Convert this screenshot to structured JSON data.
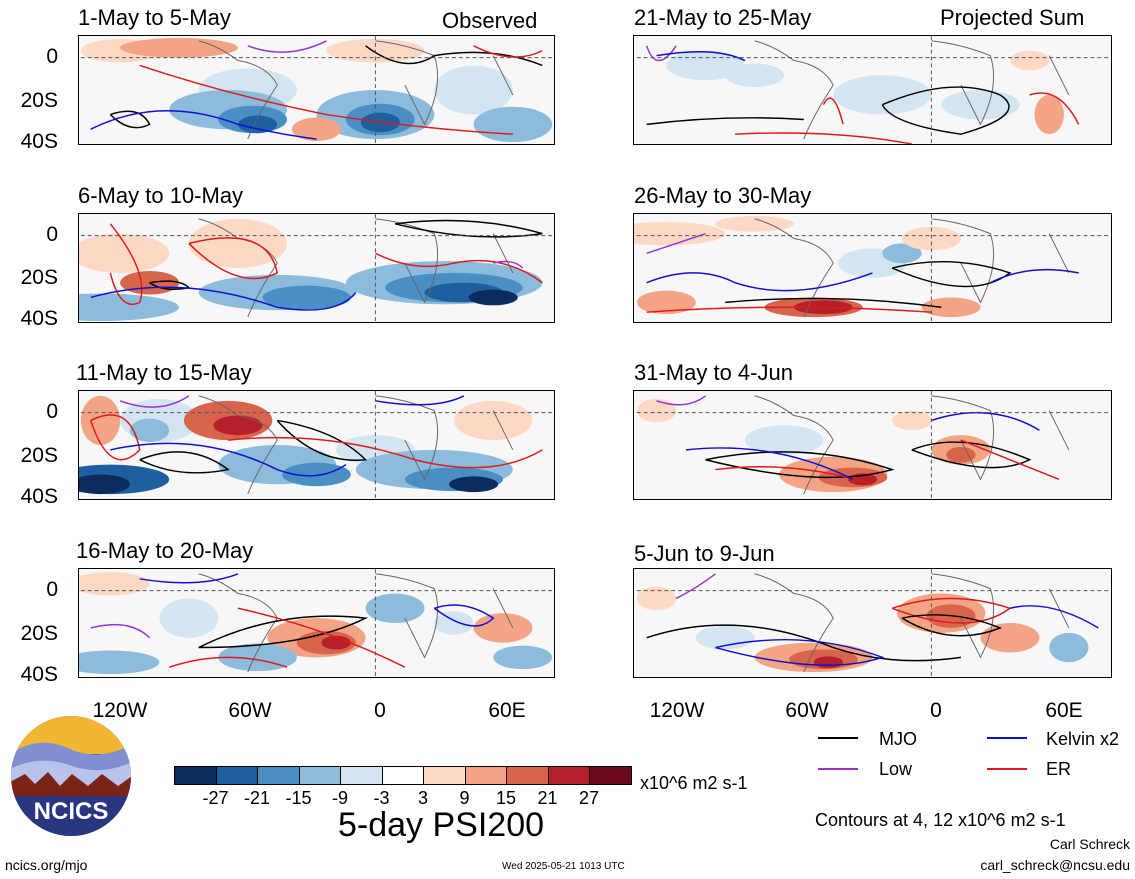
{
  "chart_data": {
    "type": "heatmap",
    "title": "5-day PSI200",
    "units": "x10^6 m2 s-1",
    "contour_note": "Contours at 4, 12 x10^6 m2 s-1",
    "colorbar": {
      "ticks": [
        "-27",
        "-21",
        "-15",
        "-9",
        "-3",
        "3",
        "9",
        "15",
        "21",
        "27"
      ],
      "colors": [
        "#0b2d5e",
        "#1f5fa0",
        "#4a8fc4",
        "#8cbbdb",
        "#d2e5f1",
        "#ffffff",
        "#fdd8c4",
        "#f2a485",
        "#d8644c",
        "#b5202c",
        "#6b0a1f"
      ]
    },
    "legend": [
      {
        "name": "MJO",
        "color": "#000000"
      },
      {
        "name": "Kelvin x2",
        "color": "#1010d0"
      },
      {
        "name": "Low",
        "color": "#9a30d8"
      },
      {
        "name": "ER",
        "color": "#e01a1a"
      }
    ],
    "y_ticks": [
      "0",
      "20S",
      "40S"
    ],
    "x_ticks": [
      "120W",
      "60W",
      "0",
      "60E"
    ],
    "panels_observed": [
      {
        "period": "1-May to 5-May"
      },
      {
        "period": "6-May to 10-May"
      },
      {
        "period": "11-May to 15-May"
      },
      {
        "period": "16-May to 20-May"
      }
    ],
    "panels_projected": [
      {
        "period": "21-May to 25-May"
      },
      {
        "period": "26-May to 30-May"
      },
      {
        "period": "31-May to 4-Jun"
      },
      {
        "period": "5-Jun to 9-Jun"
      }
    ],
    "column_labels": {
      "observed": "Observed",
      "projected": "Projected Sum"
    }
  },
  "footer": {
    "logo_text": "NCICS",
    "url": "ncics.org/mjo",
    "timestamp": "Wed 2025-05-21 1013 UTC",
    "author": "Carl Schreck",
    "email": "carl_schreck@ncsu.edu"
  }
}
